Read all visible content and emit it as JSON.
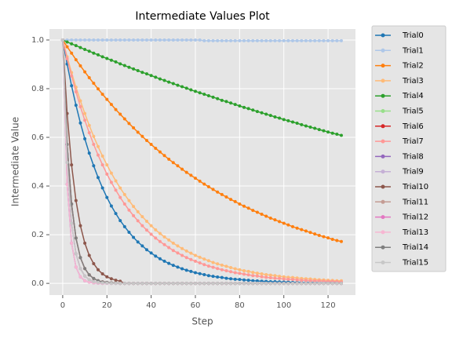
{
  "chart_data": {
    "type": "line",
    "title": "Intermediate Values Plot",
    "x_label": "Step",
    "y_label": "Intermediate Value",
    "xlim": [
      -6,
      132.4
    ],
    "ylim": [
      -0.048,
      1.045
    ],
    "xticks": [
      0,
      20,
      40,
      60,
      80,
      100,
      120
    ],
    "yticks": [
      {
        "value": 0,
        "label": "0.0"
      },
      0.2,
      0.4,
      0.6,
      0.8,
      {
        "value": 1,
        "label": "1.0"
      }
    ],
    "grid": true,
    "legend": "outside-right",
    "x": [
      0,
      2,
      4,
      6,
      8,
      10,
      12,
      14,
      16,
      18,
      20,
      22,
      24,
      26,
      28,
      30,
      32,
      34,
      36,
      38,
      40,
      42,
      44,
      46,
      48,
      50,
      52,
      54,
      56,
      58,
      60,
      62,
      64,
      66,
      68,
      70,
      72,
      74,
      76,
      78,
      80,
      82,
      84,
      86,
      88,
      90,
      92,
      94,
      96,
      98,
      100,
      102,
      104,
      106,
      108,
      110,
      112,
      114,
      116,
      118,
      120,
      122,
      124,
      126
    ],
    "series": [
      {
        "name": "Trial0",
        "color": "#1f77b4",
        "values": [
          1.0,
          0.901,
          0.812,
          0.732,
          0.659,
          0.594,
          0.535,
          0.483,
          0.435,
          0.392,
          0.353,
          0.318,
          0.287,
          0.258,
          0.233,
          0.21,
          0.189,
          0.17,
          0.154,
          0.138,
          0.125,
          0.112,
          0.101,
          0.091,
          0.082,
          0.074,
          0.067,
          0.06,
          0.054,
          0.049,
          0.044,
          0.04,
          0.036,
          0.032,
          0.029,
          0.026,
          0.024,
          0.021,
          0.019,
          0.017,
          0.016,
          0.014,
          0.013,
          0.011,
          0.01,
          0.009,
          0.008,
          0.007,
          0.007,
          0.006,
          0.005,
          0.005,
          0.004,
          0.004,
          0.003,
          0.003,
          0.003,
          0.003,
          0.002,
          0.002,
          0.002,
          0.002,
          0.002,
          0.001
        ]
      },
      {
        "name": "Trial1",
        "color": "#aec7e8",
        "values": [
          1,
          1,
          1,
          1,
          1,
          1,
          1,
          1,
          1,
          1,
          1,
          1,
          1,
          1,
          1,
          1,
          1,
          1,
          1,
          1,
          1,
          1,
          1,
          1,
          1,
          1,
          1,
          1,
          1,
          1,
          1,
          1,
          0.997,
          0.997,
          0.997,
          0.997,
          0.997,
          0.997,
          0.997,
          0.997,
          0.997,
          0.997,
          0.997,
          0.997,
          0.997,
          0.997,
          0.997,
          0.997,
          0.997,
          0.997,
          0.997,
          0.997,
          0.997,
          0.997,
          0.997,
          0.997,
          0.997,
          0.997,
          0.997,
          0.997,
          0.997,
          0.997,
          0.997,
          0.997
        ]
      },
      {
        "name": "Trial2",
        "color": "#ff7f0e",
        "values": [
          1.0,
          0.972,
          0.946,
          0.919,
          0.894,
          0.869,
          0.845,
          0.822,
          0.799,
          0.777,
          0.756,
          0.735,
          0.714,
          0.695,
          0.676,
          0.657,
          0.639,
          0.621,
          0.604,
          0.587,
          0.571,
          0.555,
          0.54,
          0.525,
          0.51,
          0.496,
          0.483,
          0.469,
          0.456,
          0.444,
          0.432,
          0.42,
          0.408,
          0.397,
          0.386,
          0.375,
          0.365,
          0.355,
          0.345,
          0.336,
          0.326,
          0.317,
          0.309,
          0.3,
          0.292,
          0.284,
          0.276,
          0.268,
          0.261,
          0.254,
          0.247,
          0.24,
          0.233,
          0.227,
          0.221,
          0.215,
          0.209,
          0.203,
          0.197,
          0.192,
          0.187,
          0.181,
          0.176,
          0.172
        ]
      },
      {
        "name": "Trial3",
        "color": "#ffbb78",
        "values": [
          1.0,
          0.931,
          0.866,
          0.806,
          0.75,
          0.698,
          0.649,
          0.604,
          0.562,
          0.523,
          0.487,
          0.453,
          0.421,
          0.392,
          0.365,
          0.34,
          0.316,
          0.294,
          0.274,
          0.255,
          0.237,
          0.22,
          0.205,
          0.191,
          0.178,
          0.165,
          0.154,
          0.143,
          0.133,
          0.124,
          0.115,
          0.107,
          0.1,
          0.093,
          0.086,
          0.08,
          0.075,
          0.07,
          0.065,
          0.06,
          0.056,
          0.052,
          0.049,
          0.045,
          0.042,
          0.039,
          0.036,
          0.034,
          0.032,
          0.029,
          0.027,
          0.025,
          0.024,
          0.022,
          0.02,
          0.019,
          0.018,
          0.016,
          0.015,
          0.014,
          0.013,
          0.012,
          0.011,
          0.011
        ]
      },
      {
        "name": "Trial4",
        "color": "#2ca02c",
        "values": [
          1.0,
          0.992,
          0.984,
          0.977,
          0.969,
          0.961,
          0.954,
          0.946,
          0.939,
          0.931,
          0.924,
          0.917,
          0.91,
          0.902,
          0.895,
          0.888,
          0.881,
          0.874,
          0.867,
          0.861,
          0.854,
          0.847,
          0.84,
          0.834,
          0.827,
          0.821,
          0.814,
          0.808,
          0.802,
          0.795,
          0.789,
          0.783,
          0.777,
          0.771,
          0.765,
          0.759,
          0.752,
          0.747,
          0.741,
          0.735,
          0.729,
          0.723,
          0.718,
          0.712,
          0.706,
          0.701,
          0.695,
          0.69,
          0.684,
          0.679,
          0.673,
          0.668,
          0.663,
          0.658,
          0.652,
          0.647,
          0.642,
          0.637,
          0.632,
          0.627,
          0.622,
          0.617,
          0.613,
          0.608
        ]
      },
      {
        "name": "Trial5",
        "color": "#98df8a",
        "values": [
          1,
          0.497,
          0.247,
          0.122,
          0.061,
          0.03,
          0.015,
          0.007,
          0.004,
          0.002,
          0.001,
          0,
          0,
          0,
          0,
          0,
          0,
          0,
          0,
          0,
          0,
          0,
          0,
          0,
          0,
          0,
          0,
          0,
          0,
          0,
          0,
          0,
          0,
          0,
          0,
          0,
          0,
          0,
          0,
          0,
          0,
          0,
          0,
          0,
          0,
          0,
          0,
          0,
          0,
          0,
          0,
          0,
          0,
          0,
          0,
          0,
          0,
          0,
          0,
          0,
          0,
          0,
          0,
          0
        ]
      },
      {
        "name": "Trial6",
        "color": "#d62728",
        "values": [
          1,
          0.571,
          0.326,
          0.186,
          0.106,
          0.061,
          0.035,
          0.02,
          0.011,
          0.006,
          0.004,
          0.002,
          0.001,
          0,
          0,
          0,
          0,
          0,
          0,
          0,
          0,
          0,
          0,
          0,
          0,
          0,
          0,
          0,
          0,
          0,
          0,
          0,
          0,
          0,
          0,
          0,
          0,
          0,
          0,
          0,
          0,
          0,
          0,
          0,
          0,
          0,
          0,
          0,
          0,
          0,
          0,
          0,
          0,
          0,
          0,
          0,
          0,
          0,
          0,
          0,
          0,
          0,
          0,
          0
        ]
      },
      {
        "name": "Trial7",
        "color": "#ff9896",
        "values": [
          1.0,
          0.923,
          0.852,
          0.787,
          0.726,
          0.67,
          0.619,
          0.571,
          0.527,
          0.487,
          0.449,
          0.415,
          0.383,
          0.353,
          0.326,
          0.301,
          0.278,
          0.257,
          0.237,
          0.219,
          0.202,
          0.186,
          0.172,
          0.159,
          0.147,
          0.135,
          0.125,
          0.115,
          0.106,
          0.098,
          0.091,
          0.084,
          0.077,
          0.071,
          0.066,
          0.061,
          0.056,
          0.052,
          0.048,
          0.044,
          0.041,
          0.038,
          0.035,
          0.032,
          0.03,
          0.027,
          0.025,
          0.023,
          0.021,
          0.02,
          0.018,
          0.017,
          0.016,
          0.014,
          0.013,
          0.012,
          0.011,
          0.01,
          0.01,
          0.009,
          0.008,
          0.008,
          0.007,
          0.006
        ]
      },
      {
        "name": "Trial8",
        "color": "#9467bd",
        "values": [
          1,
          0.407,
          0.165,
          0.067,
          0.027,
          0.011,
          0.005,
          0.002,
          0.001,
          0,
          0,
          0,
          0,
          0,
          0,
          0,
          0,
          0,
          0,
          0,
          0,
          0,
          0,
          0,
          0,
          0,
          0,
          0,
          0,
          0,
          0,
          0,
          0,
          0,
          0,
          0,
          0,
          0,
          0,
          0,
          0,
          0,
          0,
          0,
          0,
          0,
          0,
          0,
          0,
          0,
          0,
          0,
          0,
          0,
          0,
          0,
          0,
          0,
          0,
          0,
          0,
          0,
          0,
          0
        ]
      },
      {
        "name": "Trial9",
        "color": "#c5b0d5",
        "values": [
          1,
          0.497,
          0.247,
          0.122,
          0.061,
          0.03,
          0.015,
          0.007,
          0.004,
          0.002,
          0.001,
          0,
          0,
          0,
          0,
          0,
          0,
          0,
          0,
          0,
          0,
          0,
          0,
          0,
          0,
          0,
          0,
          0,
          0,
          0,
          0,
          0,
          0,
          0,
          0,
          0,
          0,
          0,
          0,
          0,
          0,
          0,
          0,
          0,
          0,
          0,
          0,
          0,
          0,
          0,
          0,
          0,
          0,
          0,
          0,
          0,
          0,
          0,
          0,
          0,
          0,
          0,
          0,
          0
        ]
      },
      {
        "name": "Trial10",
        "color": "#8c564b",
        "values": [
          1,
          0.698,
          0.487,
          0.34,
          0.237,
          0.165,
          0.115,
          0.081,
          0.056,
          0.039,
          0.027,
          0.019,
          0.013,
          0.009,
          0,
          0,
          0,
          0,
          0,
          0,
          0,
          0,
          0,
          0,
          0,
          0,
          0,
          0,
          0,
          0,
          0,
          0,
          0,
          0,
          0,
          0,
          0,
          0,
          0,
          0,
          0,
          0,
          0,
          0,
          0,
          0,
          0,
          0,
          0,
          0,
          0,
          0,
          0,
          0,
          0,
          0,
          0,
          0,
          0,
          0,
          0,
          0,
          0,
          0
        ]
      },
      {
        "name": "Trial11",
        "color": "#c49c94",
        "values": [
          1,
          0.571,
          0.326,
          0.186,
          0.106,
          0.061,
          0.035,
          0.02,
          0.011,
          0.006,
          0.004,
          0.002,
          0.001,
          0,
          0,
          0,
          0,
          0,
          0,
          0,
          0,
          0,
          0,
          0,
          0,
          0,
          0,
          0,
          0,
          0,
          0,
          0,
          0,
          0,
          0,
          0,
          0,
          0,
          0,
          0,
          0,
          0,
          0,
          0,
          0,
          0,
          0,
          0,
          0,
          0,
          0,
          0,
          0,
          0,
          0,
          0,
          0,
          0,
          0,
          0,
          0,
          0,
          0,
          0
        ]
      },
      {
        "name": "Trial12",
        "color": "#e377c2",
        "values": [
          1,
          0.497,
          0.247,
          0.122,
          0.061,
          0.03,
          0.015,
          0.007,
          0.004,
          0.002,
          0.001,
          0,
          0,
          0,
          0,
          0,
          0,
          0,
          0,
          0,
          0,
          0,
          0,
          0,
          0,
          0,
          0,
          0,
          0,
          0,
          0,
          0,
          0,
          0,
          0,
          0,
          0,
          0,
          0,
          0,
          0,
          0,
          0,
          0,
          0,
          0,
          0,
          0,
          0,
          0,
          0,
          0,
          0,
          0,
          0,
          0,
          0,
          0,
          0,
          0,
          0,
          0,
          0,
          0
        ]
      },
      {
        "name": "Trial13",
        "color": "#f7b6d2",
        "values": [
          1,
          0.407,
          0.165,
          0.067,
          0.027,
          0.011,
          0.005,
          0.002,
          0.001,
          0,
          0,
          0,
          0,
          0,
          0,
          0,
          0,
          0,
          0,
          0,
          0,
          0,
          0,
          0,
          0,
          0,
          0,
          0,
          0,
          0,
          0,
          0,
          0,
          0,
          0,
          0,
          0,
          0,
          0,
          0,
          0,
          0,
          0,
          0,
          0,
          0,
          0,
          0,
          0,
          0,
          0,
          0,
          0,
          0,
          0,
          0,
          0,
          0,
          0,
          0,
          0,
          0,
          0,
          0
        ]
      },
      {
        "name": "Trial14",
        "color": "#7f7f7f",
        "values": [
          1,
          0.571,
          0.326,
          0.186,
          0.106,
          0.061,
          0.035,
          0.02,
          0.011,
          0.006,
          0.004,
          0.002,
          0.001,
          0,
          0,
          0,
          0,
          0,
          0,
          0,
          0,
          0,
          0,
          0,
          0,
          0,
          0,
          0,
          0,
          0,
          0,
          0,
          0,
          0,
          0,
          0,
          0,
          0,
          0,
          0,
          0,
          0,
          0,
          0,
          0,
          0,
          0,
          0,
          0,
          0,
          0,
          0,
          0,
          0,
          0,
          0,
          0,
          0,
          0,
          0,
          0,
          0,
          0,
          0
        ]
      },
      {
        "name": "Trial15",
        "color": "#c7c7c7",
        "values": [
          1,
          0.497,
          0.247,
          0.122,
          0.061,
          0.03,
          0.015,
          0.007,
          0.004,
          0.002,
          0.001,
          0,
          0,
          0,
          0,
          0,
          0,
          0,
          0,
          0,
          0,
          0,
          0,
          0,
          0,
          0,
          0,
          0,
          0,
          0,
          0,
          0,
          0,
          0,
          0,
          0,
          0,
          0,
          0,
          0,
          0,
          0,
          0,
          0,
          0,
          0,
          0,
          0,
          0,
          0,
          0,
          0,
          0,
          0,
          0,
          0,
          0,
          0,
          0,
          0,
          0,
          0,
          0,
          0
        ]
      }
    ]
  }
}
